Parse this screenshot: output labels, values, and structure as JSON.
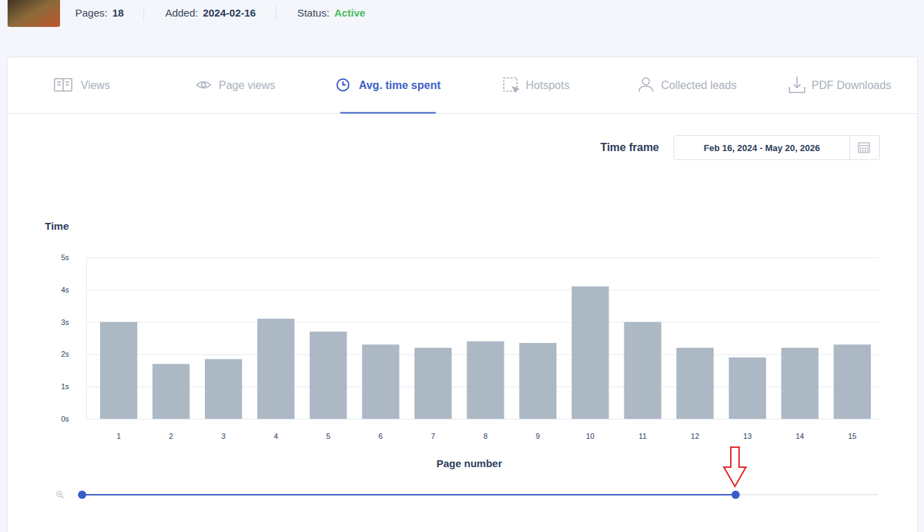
{
  "header": {
    "items": [
      {
        "label": "Pages:",
        "value": "18"
      },
      {
        "label": "Added:",
        "value": "2024-02-16"
      },
      {
        "label": "Status:",
        "value": "Active",
        "color": "#4cbb5b"
      }
    ]
  },
  "tabs": [
    {
      "label": "Views",
      "active": false
    },
    {
      "label": "Page views",
      "active": false
    },
    {
      "label": "Avg. time spent",
      "active": true
    },
    {
      "label": "Hotspots",
      "active": false
    },
    {
      "label": "Collected leads",
      "active": false
    },
    {
      "label": "PDF Downloads",
      "active": false
    }
  ],
  "time_frame": {
    "label": "Time frame",
    "value": "Feb 16, 2024 - May 20, 2026"
  },
  "chart_data": {
    "type": "bar",
    "y_label": "Time",
    "x_label": "Page number",
    "categories": [
      "1",
      "2",
      "3",
      "4",
      "5",
      "6",
      "7",
      "8",
      "9",
      "10",
      "11",
      "12",
      "13",
      "14",
      "15"
    ],
    "values": [
      3.0,
      1.7,
      1.85,
      3.1,
      2.7,
      2.3,
      2.2,
      2.4,
      2.35,
      4.1,
      3.0,
      2.2,
      1.9,
      2.2,
      2.3
    ],
    "color": "#adb8c5",
    "ylim": [
      0,
      5
    ],
    "yticks": [
      {
        "value": 0,
        "label": "0s"
      },
      {
        "value": 1,
        "label": "1s"
      },
      {
        "value": 2,
        "label": "2s"
      },
      {
        "value": 3,
        "label": "3s"
      },
      {
        "value": 4,
        "label": "4s"
      },
      {
        "value": 5,
        "label": "5s"
      }
    ],
    "grid": true
  }
}
